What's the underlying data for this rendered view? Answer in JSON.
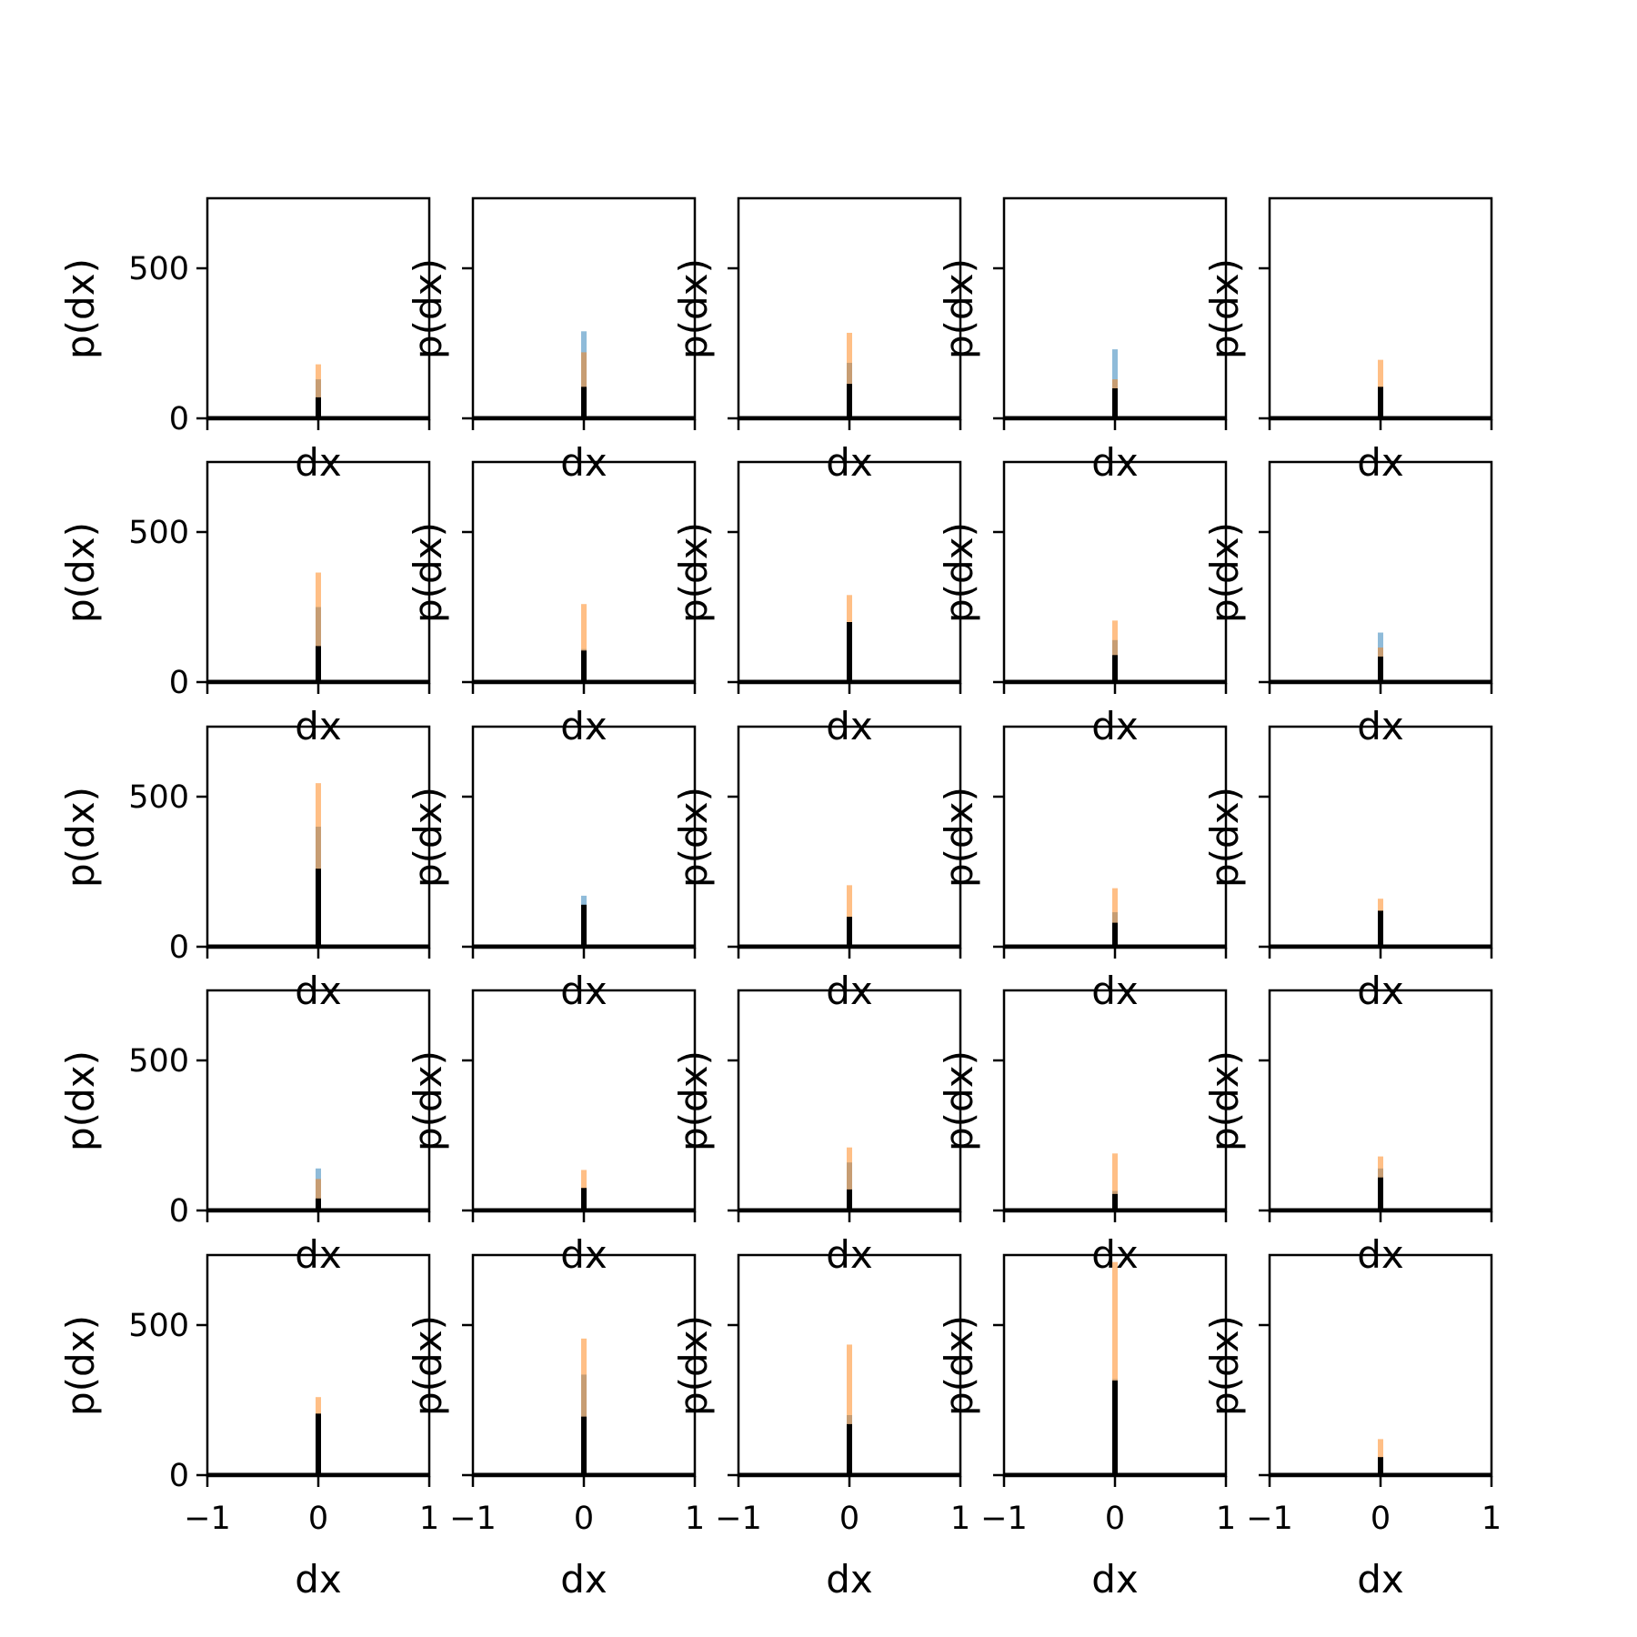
{
  "chart_data": {
    "type": "histogram-grid",
    "rows": 5,
    "cols": 5,
    "xlabel": "dx",
    "ylabel": "p(dx)",
    "xlim": [
      -1,
      1
    ],
    "ylim": [
      0,
      740
    ],
    "xticks": [
      -1,
      0,
      1
    ],
    "xtick_labels": [
      "−1",
      "0",
      "1"
    ],
    "yticks": [
      0,
      500
    ],
    "ytick_labels": [
      "0",
      "500"
    ],
    "grid": false,
    "legend": "none",
    "series_colors": {
      "blue": "#1f77b4",
      "orange": "#ff7f0e",
      "black": "#000000"
    },
    "panels": [
      {
        "blue": 130,
        "orange": 180,
        "black": 70
      },
      {
        "blue": 290,
        "orange": 220,
        "black": 105
      },
      {
        "blue": 185,
        "orange": 285,
        "black": 115
      },
      {
        "blue": 230,
        "orange": 130,
        "black": 100
      },
      {
        "blue": 100,
        "orange": 195,
        "black": 105
      },
      {
        "blue": 250,
        "orange": 365,
        "black": 120
      },
      {
        "blue": 110,
        "orange": 260,
        "black": 105
      },
      {
        "blue": 200,
        "orange": 290,
        "black": 200
      },
      {
        "blue": 140,
        "orange": 205,
        "black": 90
      },
      {
        "blue": 165,
        "orange": 115,
        "black": 85
      },
      {
        "blue": 400,
        "orange": 545,
        "black": 260
      },
      {
        "blue": 170,
        "orange": 65,
        "black": 140
      },
      {
        "blue": 100,
        "orange": 205,
        "black": 100
      },
      {
        "blue": 115,
        "orange": 195,
        "black": 80
      },
      {
        "blue": 100,
        "orange": 160,
        "black": 120
      },
      {
        "blue": 140,
        "orange": 105,
        "black": 40
      },
      {
        "blue": 65,
        "orange": 135,
        "black": 75
      },
      {
        "blue": 160,
        "orange": 210,
        "black": 70
      },
      {
        "blue": 65,
        "orange": 190,
        "black": 55
      },
      {
        "blue": 140,
        "orange": 180,
        "black": 110
      },
      {
        "blue": 200,
        "orange": 260,
        "black": 205
      },
      {
        "blue": 335,
        "orange": 455,
        "black": 195
      },
      {
        "blue": 200,
        "orange": 435,
        "black": 170
      },
      {
        "blue": 320,
        "orange": 710,
        "black": 315
      },
      {
        "blue": 55,
        "orange": 120,
        "black": 60
      }
    ]
  }
}
